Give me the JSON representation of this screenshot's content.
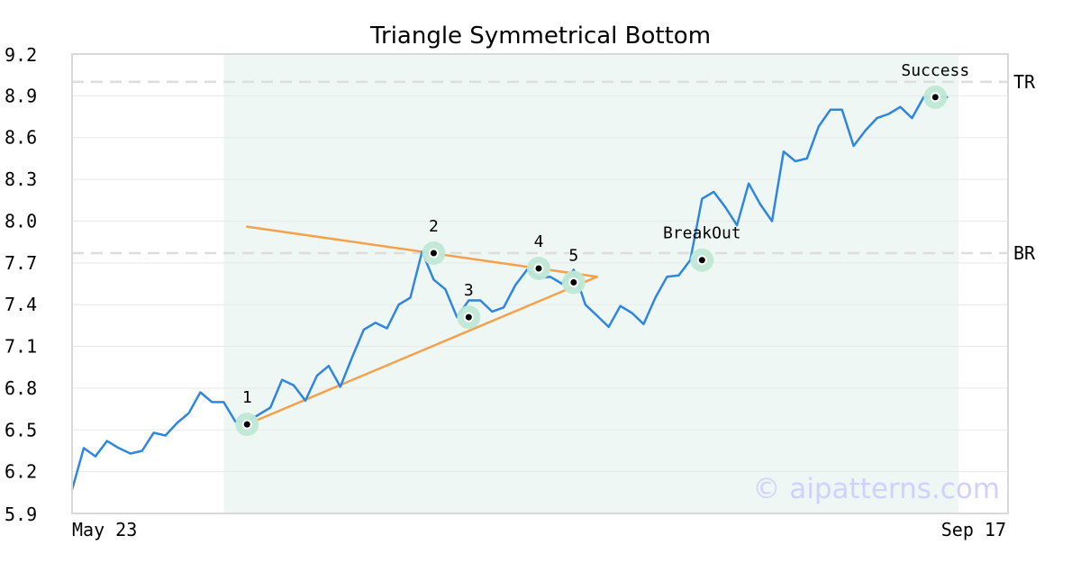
{
  "chart_data": {
    "type": "line",
    "title": "Triangle Symmetrical Bottom",
    "xlabel": "",
    "ylabel": "",
    "ylim": [
      5.9,
      9.2
    ],
    "grid": true,
    "y_ticks": [
      "9.2",
      "8.9",
      "8.6",
      "8.3",
      "8.0",
      "7.7",
      "7.4",
      "7.1",
      "6.8",
      "6.5",
      "6.2",
      "5.9"
    ],
    "x_labels": {
      "start": "May 23",
      "end": "Sep 17"
    },
    "pattern_range": {
      "start_index": 13,
      "end_index": 76
    },
    "series": [
      {
        "values": [
          6.07,
          6.37,
          6.31,
          6.42,
          6.37,
          6.33,
          6.35,
          6.48,
          6.46,
          6.55,
          6.62,
          6.77,
          6.7,
          6.7,
          6.56,
          6.56,
          6.61,
          6.66,
          6.86,
          6.82,
          6.71,
          6.89,
          6.96,
          6.81,
          7.02,
          7.22,
          7.27,
          7.23,
          7.4,
          7.45,
          7.78,
          7.58,
          7.51,
          7.31,
          7.43,
          7.43,
          7.35,
          7.38,
          7.54,
          7.65,
          7.59,
          7.6,
          7.55,
          7.65,
          7.4,
          7.32,
          7.24,
          7.39,
          7.34,
          7.26,
          7.45,
          7.6,
          7.61,
          7.72,
          8.16,
          8.21,
          8.1,
          7.97,
          8.27,
          8.12,
          8.0,
          8.5,
          8.43,
          8.45,
          8.68,
          8.8,
          8.8,
          8.54,
          8.65,
          8.74,
          8.77,
          8.82,
          8.74,
          8.89,
          8.89,
          8.89
        ]
      }
    ],
    "reference_lines": [
      {
        "label": "TR",
        "value": 9.0
      },
      {
        "label": "BR",
        "value": 7.77
      }
    ],
    "trend_lines": [
      {
        "name": "upper",
        "from": {
          "index": 15,
          "value": 7.96
        },
        "to": {
          "index": 45,
          "value": 7.6
        }
      },
      {
        "name": "lower",
        "from": {
          "index": 15,
          "value": 6.54
        },
        "to": {
          "index": 45,
          "value": 7.6
        }
      }
    ],
    "points": [
      {
        "label": "1",
        "index": 15,
        "value": 6.54
      },
      {
        "label": "2",
        "index": 31,
        "value": 7.77
      },
      {
        "label": "3",
        "index": 34,
        "value": 7.31
      },
      {
        "label": "4",
        "index": 40,
        "value": 7.66
      },
      {
        "label": "5",
        "index": 43,
        "value": 7.56
      },
      {
        "label": "BreakOut",
        "index": 54,
        "value": 7.72
      },
      {
        "label": "Success",
        "index": 74,
        "value": 8.89
      }
    ],
    "colors": {
      "line": "#2f86e0",
      "trend": "#f5a04a",
      "highlight": "#eef7f3",
      "marker_halo": "#bfe8d6",
      "reference": "#dddddd"
    }
  },
  "watermark": "© aipatterns.com"
}
